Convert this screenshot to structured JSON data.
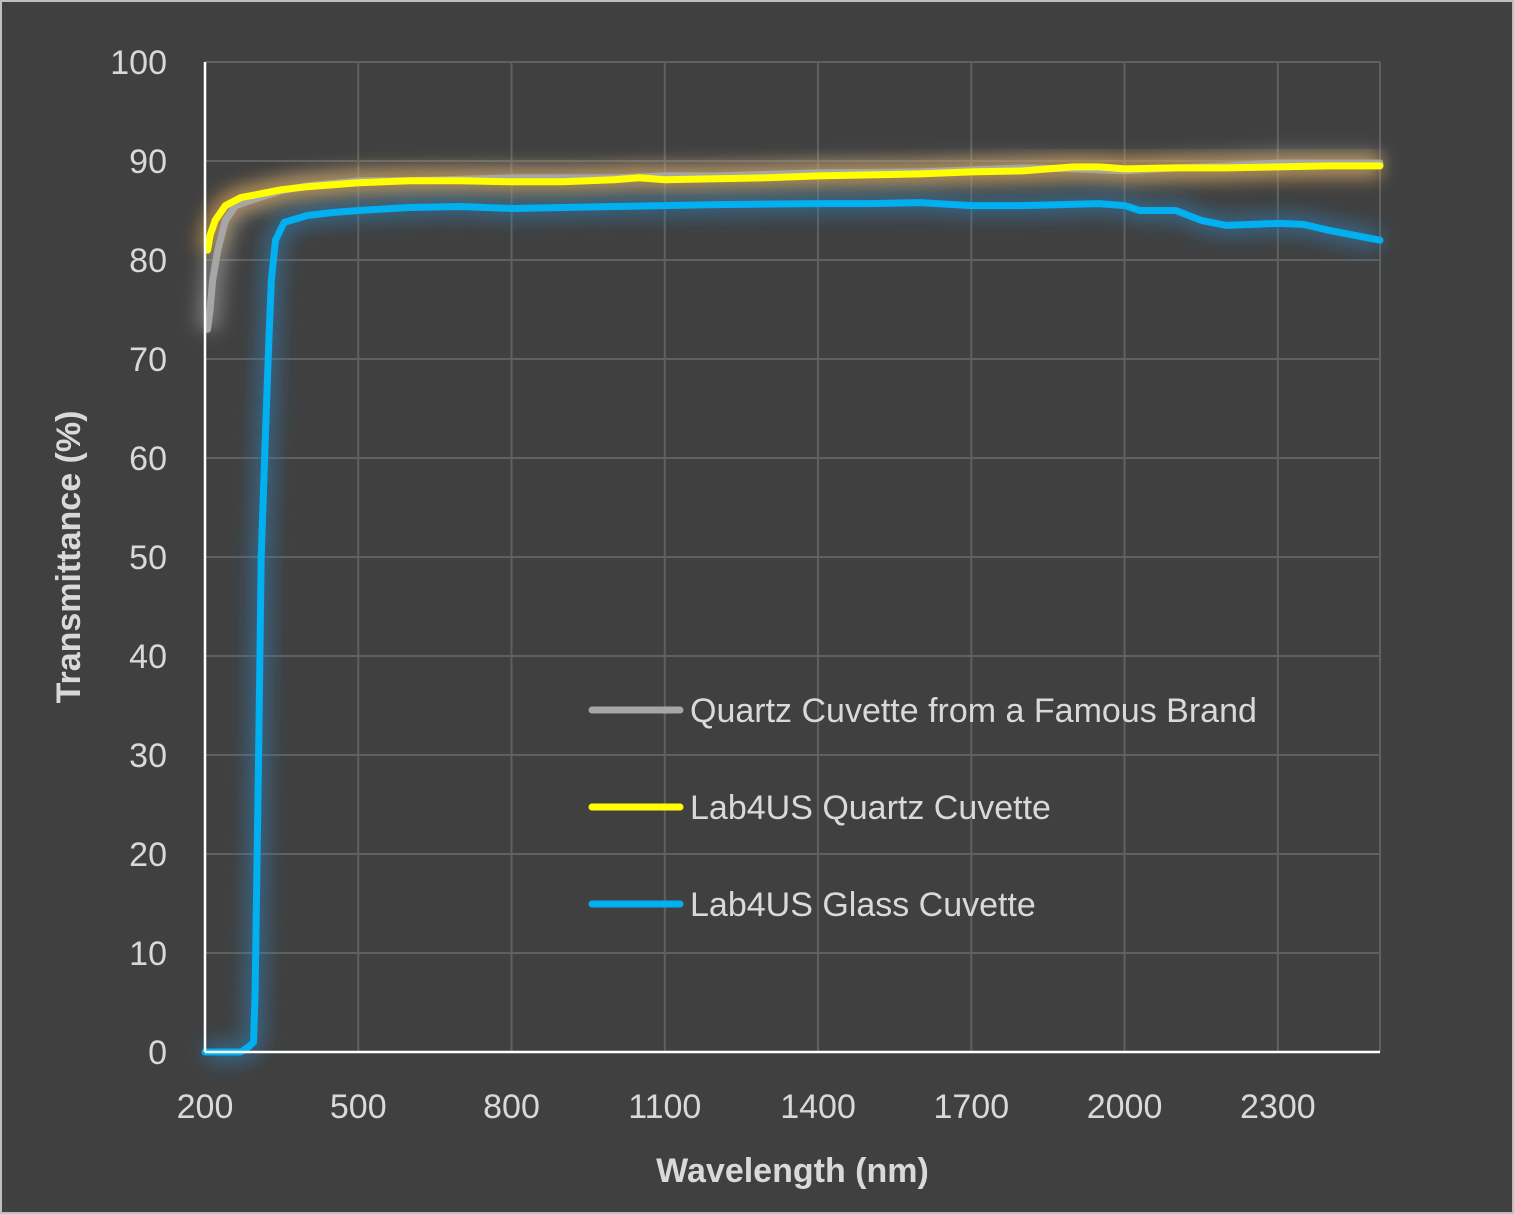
{
  "chart_data": {
    "type": "line",
    "title": "",
    "xlabel": "Wavelength (nm)",
    "ylabel": "Transmittance (%)",
    "xlim": [
      200,
      2500
    ],
    "ylim": [
      0,
      100
    ],
    "x_ticks": [
      200,
      500,
      800,
      1100,
      1400,
      1700,
      2000,
      2300
    ],
    "y_ticks": [
      0,
      10,
      20,
      30,
      40,
      50,
      60,
      70,
      80,
      90,
      100
    ],
    "grid": true,
    "legend_position": "center-right",
    "series": [
      {
        "name": "Quartz Cuvette from a Famous Brand",
        "color": "#a6a6a6",
        "points": [
          [
            205,
            73
          ],
          [
            210,
            75
          ],
          [
            215,
            78
          ],
          [
            225,
            81
          ],
          [
            240,
            84
          ],
          [
            260,
            85.5
          ],
          [
            300,
            86.2
          ],
          [
            350,
            87
          ],
          [
            400,
            87.5
          ],
          [
            500,
            88
          ],
          [
            600,
            88
          ],
          [
            800,
            88.3
          ],
          [
            1000,
            88.3
          ],
          [
            1100,
            88.5
          ],
          [
            1200,
            88.5
          ],
          [
            1400,
            88.8
          ],
          [
            1600,
            88.9
          ],
          [
            1800,
            89.3
          ],
          [
            1900,
            89.2
          ],
          [
            2000,
            89
          ],
          [
            2100,
            89.3
          ],
          [
            2200,
            89.5
          ],
          [
            2300,
            89.8
          ],
          [
            2400,
            89.8
          ],
          [
            2500,
            89.8
          ]
        ]
      },
      {
        "name": "Lab4US Quartz Cuvette",
        "color": "#ffff00",
        "points": [
          [
            205,
            81
          ],
          [
            210,
            82.5
          ],
          [
            220,
            84
          ],
          [
            240,
            85.5
          ],
          [
            270,
            86.3
          ],
          [
            300,
            86.6
          ],
          [
            350,
            87.1
          ],
          [
            400,
            87.4
          ],
          [
            500,
            87.8
          ],
          [
            600,
            88
          ],
          [
            700,
            88
          ],
          [
            800,
            87.9
          ],
          [
            900,
            87.9
          ],
          [
            1000,
            88.1
          ],
          [
            1050,
            88.3
          ],
          [
            1100,
            88.1
          ],
          [
            1200,
            88.2
          ],
          [
            1300,
            88.3
          ],
          [
            1400,
            88.5
          ],
          [
            1500,
            88.6
          ],
          [
            1600,
            88.7
          ],
          [
            1700,
            88.9
          ],
          [
            1800,
            89
          ],
          [
            1900,
            89.4
          ],
          [
            1950,
            89.4
          ],
          [
            2000,
            89.2
          ],
          [
            2100,
            89.3
          ],
          [
            2200,
            89.3
          ],
          [
            2300,
            89.4
          ],
          [
            2400,
            89.5
          ],
          [
            2500,
            89.5
          ]
        ]
      },
      {
        "name": "Lab4US Glass Cuvette",
        "color": "#00b0f0",
        "points": [
          [
            200,
            0
          ],
          [
            270,
            0
          ],
          [
            285,
            0.5
          ],
          [
            295,
            1
          ],
          [
            298,
            6
          ],
          [
            305,
            30
          ],
          [
            310,
            50
          ],
          [
            318,
            62
          ],
          [
            325,
            72
          ],
          [
            330,
            78
          ],
          [
            338,
            82
          ],
          [
            355,
            83.8
          ],
          [
            400,
            84.5
          ],
          [
            450,
            84.8
          ],
          [
            500,
            85
          ],
          [
            600,
            85.3
          ],
          [
            700,
            85.4
          ],
          [
            800,
            85.2
          ],
          [
            1000,
            85.4
          ],
          [
            1200,
            85.6
          ],
          [
            1400,
            85.7
          ],
          [
            1500,
            85.7
          ],
          [
            1600,
            85.8
          ],
          [
            1700,
            85.5
          ],
          [
            1800,
            85.5
          ],
          [
            1950,
            85.7
          ],
          [
            2000,
            85.5
          ],
          [
            2030,
            85
          ],
          [
            2100,
            85
          ],
          [
            2150,
            84
          ],
          [
            2200,
            83.5
          ],
          [
            2300,
            83.7
          ],
          [
            2350,
            83.6
          ],
          [
            2400,
            83
          ],
          [
            2450,
            82.5
          ],
          [
            2500,
            82
          ]
        ]
      }
    ]
  }
}
